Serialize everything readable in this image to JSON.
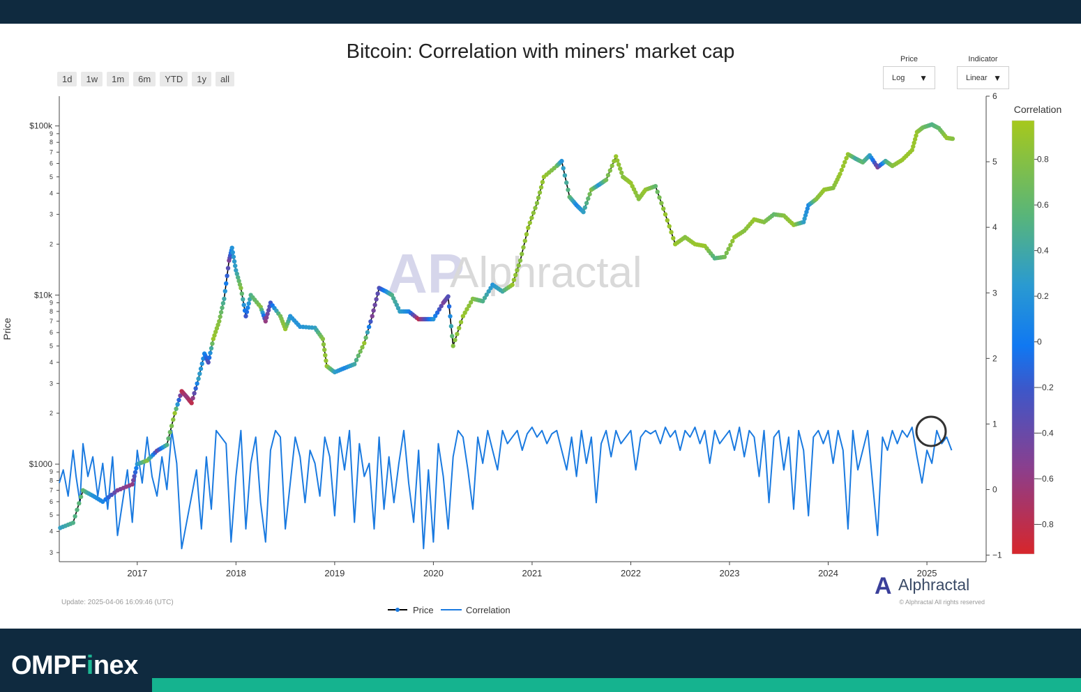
{
  "colors": {
    "frame": "#0f2a3f",
    "brand_accent": "#1db894",
    "strip": "#15b38f",
    "correlation_line": "#1a7ae0",
    "price_line": "#000000"
  },
  "brand": {
    "name_part1": "OMPF",
    "name_accent": "i",
    "name_part2": "nex"
  },
  "range_buttons": [
    "1d",
    "1w",
    "1m",
    "6m",
    "YTD",
    "1y",
    "all"
  ],
  "controls": {
    "price": {
      "label": "Price",
      "value": "Log"
    },
    "indicator": {
      "label": "Indicator",
      "value": "Linear"
    }
  },
  "footer": {
    "update": "Update: 2025-04-06 16:09:46 (UTC)",
    "watermark": "Alphractal",
    "logo_text": "Alphractal",
    "copyright": "© Alphractal All rights reserved"
  },
  "chart_data": {
    "type": "line",
    "title": "Bitcoin: Correlation with miners' market cap",
    "ylabel": "Price",
    "y_scale": "log",
    "x_ticks": [
      "2017",
      "2018",
      "2019",
      "2020",
      "2021",
      "2022",
      "2023",
      "2024",
      "2025"
    ],
    "x_tick_years": [
      2017,
      2018,
      2019,
      2020,
      2021,
      2022,
      2023,
      2024,
      2025
    ],
    "xlim": [
      2016.21,
      2025.6
    ],
    "left_axis": {
      "major_labels": [
        "$1000",
        "$10k",
        "$100k"
      ],
      "major_values": [
        1000,
        10000,
        100000
      ],
      "minor_labels": [
        "3",
        "4",
        "5",
        "6",
        "7",
        "8",
        "9",
        "2",
        "3",
        "4",
        "5",
        "6",
        "7",
        "8",
        "9",
        "2",
        "3",
        "4",
        "5",
        "6",
        "7",
        "8",
        "9"
      ],
      "minor_values": [
        300,
        400,
        500,
        600,
        700,
        800,
        900,
        2000,
        3000,
        4000,
        5000,
        6000,
        7000,
        8000,
        9000,
        20000,
        30000,
        40000,
        50000,
        60000,
        70000,
        80000,
        90000
      ],
      "ylim": [
        265,
        150000
      ]
    },
    "right_axis": {
      "labels": [
        "−1",
        "0",
        "1",
        "2",
        "3",
        "4",
        "5",
        "6"
      ],
      "values": [
        -1,
        0,
        1,
        2,
        3,
        4,
        5,
        6
      ],
      "ylim": [
        -1.1,
        6
      ]
    },
    "colorbar": {
      "title": "Correlation",
      "labels": [
        "0.8",
        "0.6",
        "0.4",
        "0.2",
        "0",
        "−0.2",
        "−0.4",
        "−0.6",
        "−0.8"
      ],
      "values": [
        0.8,
        0.6,
        0.4,
        0.2,
        0,
        -0.2,
        -0.4,
        -0.6,
        -0.8
      ],
      "range": [
        -0.93,
        0.97
      ]
    },
    "legend": [
      "Price",
      "Correlation"
    ],
    "price_series": [
      {
        "t": 2016.22,
        "v": 420,
        "c": 0.3
      },
      {
        "t": 2016.35,
        "v": 450,
        "c": 0.5
      },
      {
        "t": 2016.45,
        "v": 700,
        "c": 0.6
      },
      {
        "t": 2016.55,
        "v": 650,
        "c": 0.2
      },
      {
        "t": 2016.65,
        "v": 600,
        "c": 0.1
      },
      {
        "t": 2016.8,
        "v": 700,
        "c": -0.5
      },
      {
        "t": 2016.95,
        "v": 760,
        "c": -0.6
      },
      {
        "t": 2017.0,
        "v": 1000,
        "c": 0.2
      },
      {
        "t": 2017.1,
        "v": 1050,
        "c": 0.8
      },
      {
        "t": 2017.2,
        "v": 1200,
        "c": -0.4
      },
      {
        "t": 2017.3,
        "v": 1300,
        "c": 0.5
      },
      {
        "t": 2017.38,
        "v": 2000,
        "c": 0.9
      },
      {
        "t": 2017.45,
        "v": 2700,
        "c": -0.8
      },
      {
        "t": 2017.5,
        "v": 2500,
        "c": -0.6
      },
      {
        "t": 2017.55,
        "v": 2300,
        "c": -0.8
      },
      {
        "t": 2017.62,
        "v": 3200,
        "c": 0.3
      },
      {
        "t": 2017.68,
        "v": 4500,
        "c": 0.1
      },
      {
        "t": 2017.72,
        "v": 4000,
        "c": -0.3
      },
      {
        "t": 2017.77,
        "v": 5500,
        "c": 0.9
      },
      {
        "t": 2017.83,
        "v": 7000,
        "c": 0.8
      },
      {
        "t": 2017.88,
        "v": 9500,
        "c": 0.4
      },
      {
        "t": 2017.93,
        "v": 16000,
        "c": -0.5
      },
      {
        "t": 2017.96,
        "v": 19000,
        "c": 0.2
      },
      {
        "t": 2018.0,
        "v": 14000,
        "c": 0.3
      },
      {
        "t": 2018.05,
        "v": 11000,
        "c": 0.8
      },
      {
        "t": 2018.1,
        "v": 7500,
        "c": -0.2
      },
      {
        "t": 2018.15,
        "v": 10000,
        "c": 0.5
      },
      {
        "t": 2018.25,
        "v": 8500,
        "c": 0.8
      },
      {
        "t": 2018.3,
        "v": 7000,
        "c": -0.6
      },
      {
        "t": 2018.35,
        "v": 9000,
        "c": -0.2
      },
      {
        "t": 2018.45,
        "v": 7500,
        "c": 0.7
      },
      {
        "t": 2018.5,
        "v": 6300,
        "c": 0.9
      },
      {
        "t": 2018.55,
        "v": 7500,
        "c": 0.2
      },
      {
        "t": 2018.65,
        "v": 6500,
        "c": 0.2
      },
      {
        "t": 2018.8,
        "v": 6400,
        "c": 0.3
      },
      {
        "t": 2018.88,
        "v": 5500,
        "c": 0.8
      },
      {
        "t": 2018.92,
        "v": 3800,
        "c": 0.9
      },
      {
        "t": 2019.0,
        "v": 3500,
        "c": 0.3
      },
      {
        "t": 2019.1,
        "v": 3700,
        "c": 0.1
      },
      {
        "t": 2019.2,
        "v": 3900,
        "c": 0.4
      },
      {
        "t": 2019.3,
        "v": 5200,
        "c": 0.9
      },
      {
        "t": 2019.38,
        "v": 7500,
        "c": -0.5
      },
      {
        "t": 2019.45,
        "v": 11000,
        "c": -0.3
      },
      {
        "t": 2019.52,
        "v": 10500,
        "c": 0.1
      },
      {
        "t": 2019.58,
        "v": 10000,
        "c": 0.5
      },
      {
        "t": 2019.66,
        "v": 8000,
        "c": 0.3
      },
      {
        "t": 2019.75,
        "v": 8000,
        "c": 0.1
      },
      {
        "t": 2019.85,
        "v": 7200,
        "c": -0.8
      },
      {
        "t": 2019.92,
        "v": 7200,
        "c": -0.3
      },
      {
        "t": 2020.0,
        "v": 7200,
        "c": 0.2
      },
      {
        "t": 2020.1,
        "v": 9000,
        "c": -0.5
      },
      {
        "t": 2020.15,
        "v": 9800,
        "c": -0.3
      },
      {
        "t": 2020.2,
        "v": 5000,
        "c": 0.8
      },
      {
        "t": 2020.3,
        "v": 7500,
        "c": 0.9
      },
      {
        "t": 2020.4,
        "v": 9500,
        "c": 0.8
      },
      {
        "t": 2020.5,
        "v": 9200,
        "c": 0.5
      },
      {
        "t": 2020.6,
        "v": 11500,
        "c": 0.2
      },
      {
        "t": 2020.7,
        "v": 10500,
        "c": 0.4
      },
      {
        "t": 2020.8,
        "v": 11500,
        "c": 0.9
      },
      {
        "t": 2020.88,
        "v": 16000,
        "c": 0.8
      },
      {
        "t": 2020.96,
        "v": 25000,
        "c": 0.9
      },
      {
        "t": 2021.05,
        "v": 35000,
        "c": 0.8
      },
      {
        "t": 2021.12,
        "v": 50000,
        "c": 0.9
      },
      {
        "t": 2021.25,
        "v": 58000,
        "c": 0.7
      },
      {
        "t": 2021.3,
        "v": 62000,
        "c": 0.2
      },
      {
        "t": 2021.38,
        "v": 38000,
        "c": 0.6
      },
      {
        "t": 2021.45,
        "v": 34000,
        "c": 0.1
      },
      {
        "t": 2021.52,
        "v": 31000,
        "c": 0.3
      },
      {
        "t": 2021.6,
        "v": 42000,
        "c": 0.8
      },
      {
        "t": 2021.68,
        "v": 45000,
        "c": 0.2
      },
      {
        "t": 2021.75,
        "v": 48000,
        "c": 0.7
      },
      {
        "t": 2021.85,
        "v": 66000,
        "c": 0.9
      },
      {
        "t": 2021.92,
        "v": 50000,
        "c": 0.8
      },
      {
        "t": 2022.0,
        "v": 46000,
        "c": 0.9
      },
      {
        "t": 2022.08,
        "v": 37000,
        "c": 0.8
      },
      {
        "t": 2022.15,
        "v": 42000,
        "c": 0.9
      },
      {
        "t": 2022.25,
        "v": 44000,
        "c": 0.6
      },
      {
        "t": 2022.35,
        "v": 30000,
        "c": 0.9
      },
      {
        "t": 2022.45,
        "v": 20000,
        "c": 0.9
      },
      {
        "t": 2022.55,
        "v": 22000,
        "c": 0.8
      },
      {
        "t": 2022.65,
        "v": 20000,
        "c": 0.9
      },
      {
        "t": 2022.75,
        "v": 19500,
        "c": 0.9
      },
      {
        "t": 2022.85,
        "v": 16500,
        "c": 0.5
      },
      {
        "t": 2022.95,
        "v": 16800,
        "c": 0.7
      },
      {
        "t": 2023.05,
        "v": 22000,
        "c": 0.9
      },
      {
        "t": 2023.15,
        "v": 24000,
        "c": 0.8
      },
      {
        "t": 2023.25,
        "v": 28000,
        "c": 0.9
      },
      {
        "t": 2023.35,
        "v": 27000,
        "c": 0.8
      },
      {
        "t": 2023.45,
        "v": 30000,
        "c": 0.6
      },
      {
        "t": 2023.55,
        "v": 29500,
        "c": 0.8
      },
      {
        "t": 2023.65,
        "v": 26000,
        "c": 0.9
      },
      {
        "t": 2023.75,
        "v": 27000,
        "c": 0.3
      },
      {
        "t": 2023.8,
        "v": 34000,
        "c": 0.1
      },
      {
        "t": 2023.88,
        "v": 37000,
        "c": 0.8
      },
      {
        "t": 2023.96,
        "v": 42000,
        "c": 0.9
      },
      {
        "t": 2024.05,
        "v": 43000,
        "c": 0.8
      },
      {
        "t": 2024.12,
        "v": 52000,
        "c": 0.9
      },
      {
        "t": 2024.2,
        "v": 68000,
        "c": 0.9
      },
      {
        "t": 2024.28,
        "v": 64000,
        "c": 0.4
      },
      {
        "t": 2024.35,
        "v": 61000,
        "c": 0.6
      },
      {
        "t": 2024.42,
        "v": 67000,
        "c": 0.3
      },
      {
        "t": 2024.5,
        "v": 57000,
        "c": -0.5
      },
      {
        "t": 2024.58,
        "v": 62000,
        "c": 0.4
      },
      {
        "t": 2024.65,
        "v": 58000,
        "c": 0.8
      },
      {
        "t": 2024.75,
        "v": 63000,
        "c": 0.9
      },
      {
        "t": 2024.85,
        "v": 72000,
        "c": 0.9
      },
      {
        "t": 2024.9,
        "v": 92000,
        "c": 0.9
      },
      {
        "t": 2024.96,
        "v": 98000,
        "c": 0.7
      },
      {
        "t": 2025.05,
        "v": 102000,
        "c": 0.5
      },
      {
        "t": 2025.12,
        "v": 97000,
        "c": 0.6
      },
      {
        "t": 2025.2,
        "v": 85000,
        "c": 0.9
      },
      {
        "t": 2025.26,
        "v": 84000,
        "c": 0.8
      }
    ],
    "correlation_series": [
      [
        2016.21,
        0.1
      ],
      [
        2016.25,
        0.3
      ],
      [
        2016.3,
        -0.1
      ],
      [
        2016.35,
        0.6
      ],
      [
        2016.38,
        0.2
      ],
      [
        2016.42,
        -0.2
      ],
      [
        2016.45,
        0.7
      ],
      [
        2016.5,
        0.2
      ],
      [
        2016.55,
        0.5
      ],
      [
        2016.6,
        -0.1
      ],
      [
        2016.65,
        0.4
      ],
      [
        2016.7,
        -0.3
      ],
      [
        2016.75,
        0.5
      ],
      [
        2016.8,
        -0.7
      ],
      [
        2016.85,
        -0.2
      ],
      [
        2016.9,
        0.3
      ],
      [
        2016.95,
        -0.5
      ],
      [
        2017.0,
        0.6
      ],
      [
        2017.05,
        0.1
      ],
      [
        2017.1,
        0.8
      ],
      [
        2017.15,
        0.2
      ],
      [
        2017.2,
        -0.1
      ],
      [
        2017.25,
        0.5
      ],
      [
        2017.3,
        0.0
      ],
      [
        2017.35,
        0.9
      ],
      [
        2017.4,
        0.4
      ],
      [
        2017.45,
        -0.9
      ],
      [
        2017.5,
        -0.5
      ],
      [
        2017.55,
        -0.1
      ],
      [
        2017.6,
        0.3
      ],
      [
        2017.65,
        -0.6
      ],
      [
        2017.7,
        0.5
      ],
      [
        2017.75,
        -0.3
      ],
      [
        2017.8,
        0.9
      ],
      [
        2017.9,
        0.7
      ],
      [
        2017.95,
        -0.8
      ],
      [
        2018.0,
        0.2
      ],
      [
        2018.05,
        0.9
      ],
      [
        2018.1,
        -0.6
      ],
      [
        2018.15,
        0.4
      ],
      [
        2018.2,
        0.8
      ],
      [
        2018.25,
        -0.2
      ],
      [
        2018.3,
        -0.8
      ],
      [
        2018.35,
        0.6
      ],
      [
        2018.4,
        0.9
      ],
      [
        2018.45,
        0.8
      ],
      [
        2018.5,
        -0.6
      ],
      [
        2018.55,
        0.1
      ],
      [
        2018.6,
        0.8
      ],
      [
        2018.65,
        0.5
      ],
      [
        2018.7,
        -0.2
      ],
      [
        2018.75,
        0.6
      ],
      [
        2018.8,
        0.4
      ],
      [
        2018.85,
        -0.1
      ],
      [
        2018.9,
        0.8
      ],
      [
        2018.95,
        0.5
      ],
      [
        2019.0,
        -0.4
      ],
      [
        2019.05,
        0.8
      ],
      [
        2019.1,
        0.3
      ],
      [
        2019.15,
        0.9
      ],
      [
        2019.2,
        -0.5
      ],
      [
        2019.25,
        0.7
      ],
      [
        2019.3,
        0.2
      ],
      [
        2019.35,
        0.4
      ],
      [
        2019.4,
        -0.6
      ],
      [
        2019.45,
        0.8
      ],
      [
        2019.5,
        -0.3
      ],
      [
        2019.55,
        0.5
      ],
      [
        2019.6,
        -0.2
      ],
      [
        2019.65,
        0.4
      ],
      [
        2019.7,
        0.9
      ],
      [
        2019.75,
        0.1
      ],
      [
        2019.8,
        -0.5
      ],
      [
        2019.85,
        0.6
      ],
      [
        2019.9,
        -0.9
      ],
      [
        2019.95,
        0.3
      ],
      [
        2020.0,
        -0.8
      ],
      [
        2020.05,
        0.7
      ],
      [
        2020.1,
        0.2
      ],
      [
        2020.15,
        -0.6
      ],
      [
        2020.2,
        0.5
      ],
      [
        2020.25,
        0.9
      ],
      [
        2020.3,
        0.8
      ],
      [
        2020.35,
        0.3
      ],
      [
        2020.4,
        -0.3
      ],
      [
        2020.45,
        0.8
      ],
      [
        2020.5,
        0.4
      ],
      [
        2020.55,
        0.9
      ],
      [
        2020.6,
        0.6
      ],
      [
        2020.65,
        0.3
      ],
      [
        2020.7,
        0.9
      ],
      [
        2020.75,
        0.7
      ],
      [
        2020.8,
        0.8
      ],
      [
        2020.85,
        0.9
      ],
      [
        2020.9,
        0.6
      ],
      [
        2020.95,
        0.85
      ],
      [
        2021.0,
        0.95
      ],
      [
        2021.05,
        0.8
      ],
      [
        2021.1,
        0.9
      ],
      [
        2021.15,
        0.7
      ],
      [
        2021.2,
        0.85
      ],
      [
        2021.25,
        0.9
      ],
      [
        2021.3,
        0.6
      ],
      [
        2021.35,
        0.3
      ],
      [
        2021.4,
        0.8
      ],
      [
        2021.45,
        0.2
      ],
      [
        2021.5,
        0.9
      ],
      [
        2021.55,
        0.4
      ],
      [
        2021.6,
        0.8
      ],
      [
        2021.65,
        -0.2
      ],
      [
        2021.7,
        0.7
      ],
      [
        2021.75,
        0.9
      ],
      [
        2021.8,
        0.5
      ],
      [
        2021.85,
        0.9
      ],
      [
        2021.9,
        0.7
      ],
      [
        2021.95,
        0.8
      ],
      [
        2022.0,
        0.9
      ],
      [
        2022.05,
        0.3
      ],
      [
        2022.1,
        0.8
      ],
      [
        2022.15,
        0.9
      ],
      [
        2022.2,
        0.85
      ],
      [
        2022.25,
        0.9
      ],
      [
        2022.3,
        0.7
      ],
      [
        2022.35,
        0.95
      ],
      [
        2022.4,
        0.8
      ],
      [
        2022.45,
        0.9
      ],
      [
        2022.5,
        0.6
      ],
      [
        2022.55,
        0.9
      ],
      [
        2022.6,
        0.8
      ],
      [
        2022.65,
        0.95
      ],
      [
        2022.7,
        0.7
      ],
      [
        2022.75,
        0.9
      ],
      [
        2022.8,
        0.4
      ],
      [
        2022.85,
        0.9
      ],
      [
        2022.9,
        0.7
      ],
      [
        2022.95,
        0.8
      ],
      [
        2023.0,
        0.9
      ],
      [
        2023.05,
        0.6
      ],
      [
        2023.1,
        0.95
      ],
      [
        2023.15,
        0.5
      ],
      [
        2023.2,
        0.9
      ],
      [
        2023.25,
        0.8
      ],
      [
        2023.3,
        0.2
      ],
      [
        2023.35,
        0.9
      ],
      [
        2023.4,
        -0.2
      ],
      [
        2023.45,
        0.8
      ],
      [
        2023.5,
        0.9
      ],
      [
        2023.55,
        0.3
      ],
      [
        2023.6,
        0.8
      ],
      [
        2023.65,
        -0.3
      ],
      [
        2023.7,
        0.9
      ],
      [
        2023.75,
        0.6
      ],
      [
        2023.8,
        -0.4
      ],
      [
        2023.85,
        0.8
      ],
      [
        2023.9,
        0.9
      ],
      [
        2023.95,
        0.7
      ],
      [
        2024.0,
        0.9
      ],
      [
        2024.05,
        0.4
      ],
      [
        2024.1,
        0.9
      ],
      [
        2024.15,
        0.6
      ],
      [
        2024.2,
        -0.6
      ],
      [
        2024.25,
        0.9
      ],
      [
        2024.3,
        0.3
      ],
      [
        2024.35,
        0.6
      ],
      [
        2024.4,
        0.9
      ],
      [
        2024.45,
        0.1
      ],
      [
        2024.5,
        -0.7
      ],
      [
        2024.55,
        0.8
      ],
      [
        2024.6,
        0.6
      ],
      [
        2024.65,
        0.9
      ],
      [
        2024.7,
        0.7
      ],
      [
        2024.75,
        0.9
      ],
      [
        2024.8,
        0.8
      ],
      [
        2024.85,
        0.95
      ],
      [
        2024.9,
        0.5
      ],
      [
        2024.95,
        0.1
      ],
      [
        2025.0,
        0.6
      ],
      [
        2025.05,
        0.4
      ],
      [
        2025.1,
        0.9
      ],
      [
        2025.15,
        0.7
      ],
      [
        2025.2,
        0.8
      ],
      [
        2025.25,
        0.6
      ]
    ]
  }
}
